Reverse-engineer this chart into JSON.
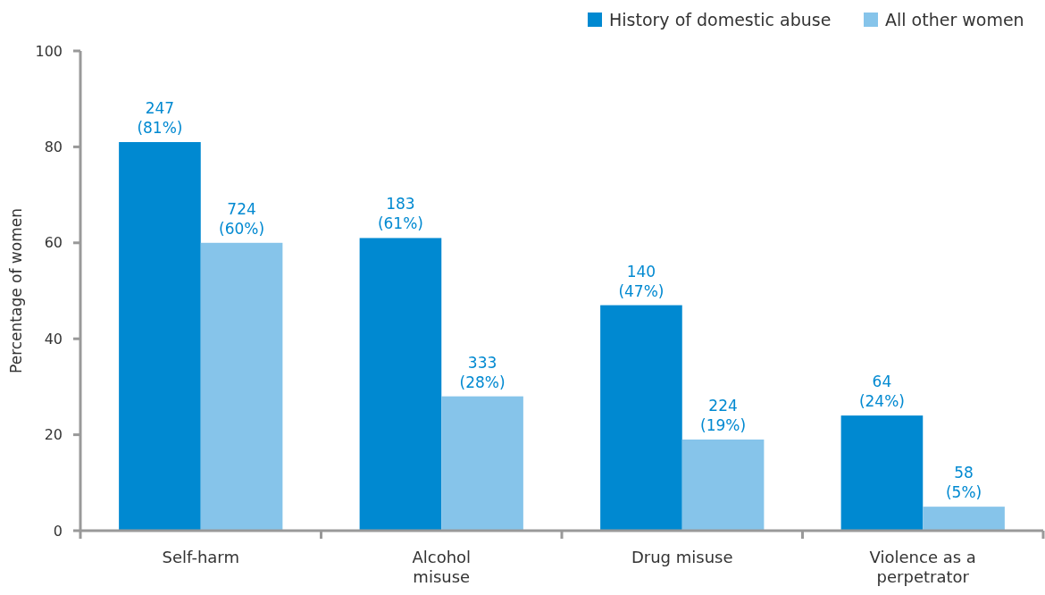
{
  "chart_data": {
    "type": "bar",
    "ylabel": "Percentage of women",
    "categories": [
      "Self-harm",
      "Alcohol misuse",
      "Drug misuse",
      "Violence as a perpetrator"
    ],
    "series": [
      {
        "name": "History of domestic abuse",
        "color": "#0089d1",
        "values": [
          81,
          61,
          47,
          24
        ],
        "value_labels": [
          "247\n(81%)",
          "183\n(61%)",
          "140\n(47%)",
          "64\n(24%)"
        ]
      },
      {
        "name": "All other women",
        "color": "#86c4ea",
        "values": [
          60,
          28,
          19,
          5
        ],
        "value_labels": [
          "724\n(60%)",
          "333\n(28%)",
          "224\n(19%)",
          "58\n(5%)"
        ]
      }
    ],
    "ylim": [
      0,
      100
    ],
    "yticks": [
      0,
      20,
      40,
      60,
      80,
      100
    ],
    "grid": false,
    "legend": "top right"
  }
}
